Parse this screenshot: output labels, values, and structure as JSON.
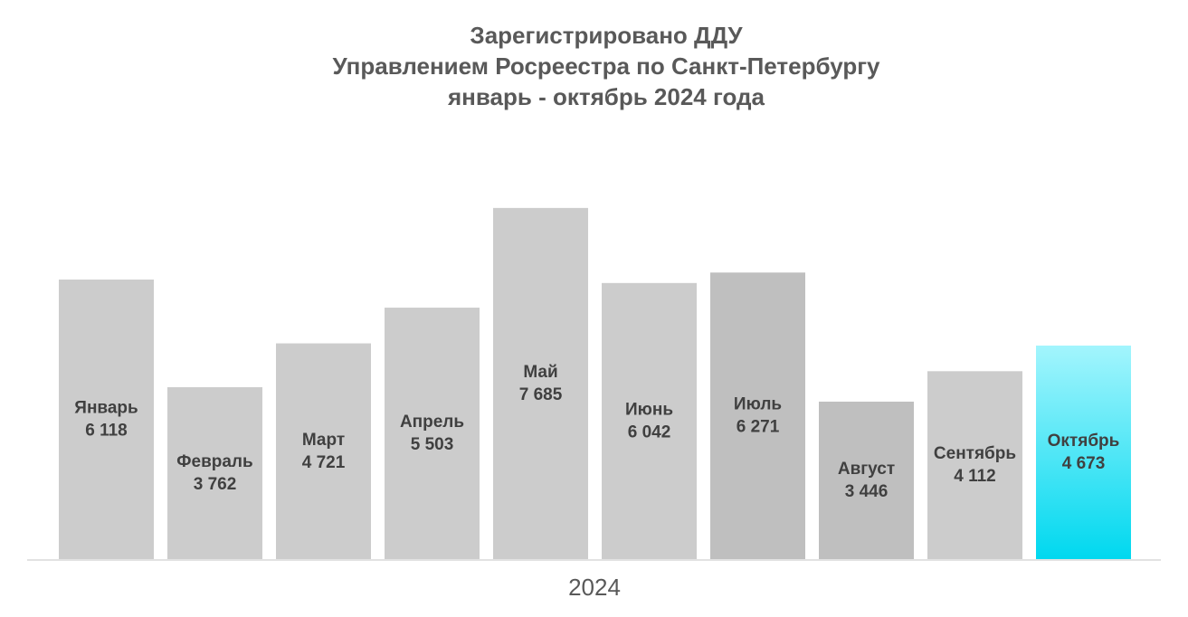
{
  "chart_data": {
    "type": "bar",
    "title": [
      "Зарегистрировано ДДУ",
      "Управлением Росреестра по Санкт-Петербургу",
      "январь - октябрь 2024 года"
    ],
    "x_label": "2024",
    "categories": [
      "Январь",
      "Февраль",
      "Март",
      "Апрель",
      "Май",
      "Июнь",
      "Июль",
      "Август",
      "Сентябрь",
      "Октябрь"
    ],
    "values": [
      6118,
      3762,
      4721,
      5503,
      7685,
      6042,
      6271,
      3446,
      4112,
      4673
    ],
    "value_labels": [
      "6 118",
      "3 762",
      "4 721",
      "5 503",
      "7 685",
      "6 042",
      "6 271",
      "3 446",
      "4 112",
      "4 673"
    ],
    "colors": [
      "#cccccc",
      "#cccccc",
      "#cccccc",
      "#cccccc",
      "#cccccc",
      "#cccccc",
      "#bfbfbf",
      "#bfbfbf",
      "#cccccc",
      [
        "#a3f5fd",
        "#00d8ef"
      ]
    ]
  }
}
